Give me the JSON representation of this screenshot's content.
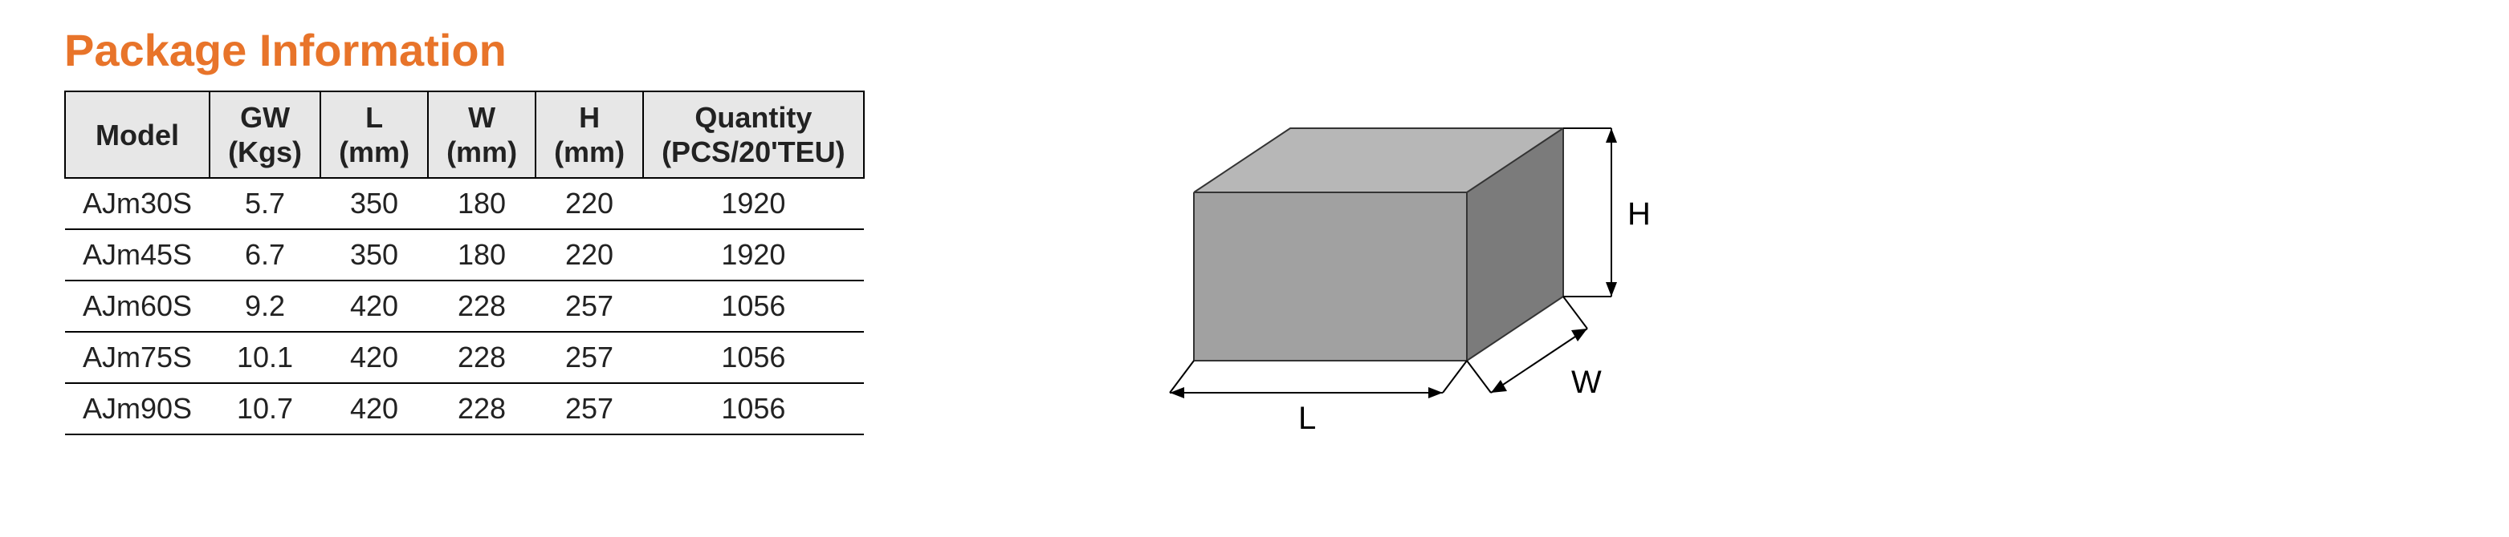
{
  "title": "Package Information",
  "title_color": "#e8742a",
  "table": {
    "header_bg": "#e7e7e7",
    "border_color": "#000000",
    "columns": [
      {
        "top": "Model",
        "sub": ""
      },
      {
        "top": "GW",
        "sub": "(Kgs)"
      },
      {
        "top": "L",
        "sub": "(mm)"
      },
      {
        "top": "W",
        "sub": "(mm)"
      },
      {
        "top": "H",
        "sub": "(mm)"
      },
      {
        "top": "Quantity",
        "sub": "(PCS/20'TEU)"
      }
    ],
    "rows": [
      [
        "AJm30S",
        "5.7",
        "350",
        "180",
        "220",
        "1920"
      ],
      [
        "AJm45S",
        "6.7",
        "350",
        "180",
        "220",
        "1920"
      ],
      [
        "AJm60S",
        "9.2",
        "420",
        "228",
        "257",
        "1056"
      ],
      [
        "AJm75S",
        "10.1",
        "420",
        "228",
        "257",
        "1056"
      ],
      [
        "AJm90S",
        "10.7",
        "420",
        "228",
        "257",
        "1056"
      ]
    ]
  },
  "diagram": {
    "labels": {
      "L": "L",
      "W": "W",
      "H": "H"
    },
    "face_top": "#b7b7b7",
    "face_front": "#a1a1a1",
    "face_side": "#7b7b7b",
    "edge": "#343434",
    "arrow": "#000000"
  }
}
